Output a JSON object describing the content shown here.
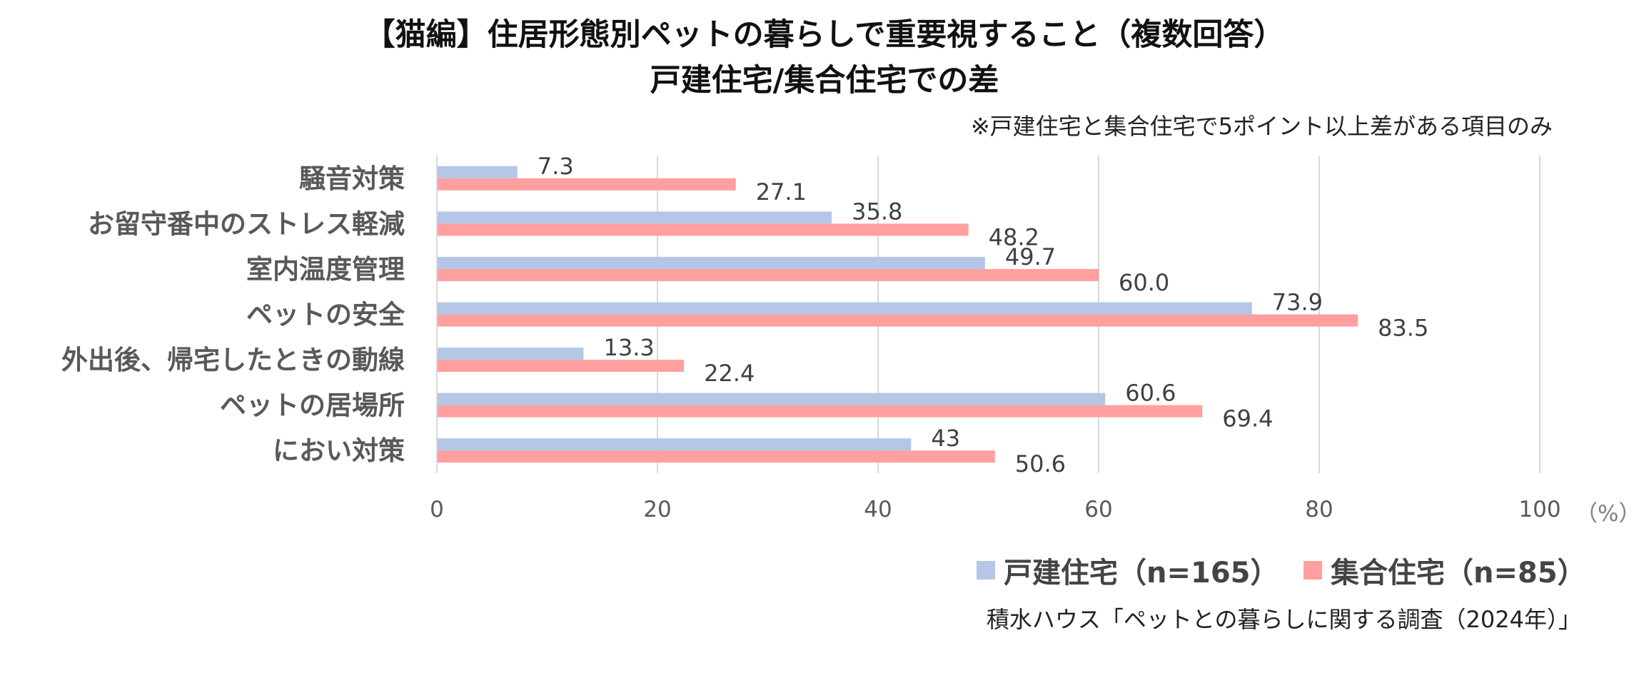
{
  "title_line1": "【猫編】住居形態別ペットの暮らしで重要視すること（複数回答）",
  "title_line2": "戸建住宅/集合住宅での差",
  "note": "※戸建住宅と集合住宅で5ポイント以上差がある項目のみ",
  "source": "積水ハウス「ペットとの暮らしに関する調査（2024年）」",
  "colors": {
    "series_a": "#b4c7e7",
    "series_b": "#ff9f9f",
    "grid": "#d9d9d9",
    "label": "#595959"
  },
  "chart_data": {
    "type": "bar",
    "orientation": "horizontal",
    "categories": [
      "騒音対策",
      "お留守番中のストレス軽減",
      "室内温度管理",
      "ペットの安全",
      "外出後、帰宅したときの動線",
      "ペットの居場所",
      "におい対策"
    ],
    "series": [
      {
        "name": "戸建住宅（n=165）",
        "values": [
          7.3,
          35.8,
          49.7,
          73.9,
          13.3,
          60.6,
          43
        ],
        "labels": [
          "7.3",
          "35.8",
          "49.7",
          "73.9",
          "13.3",
          "60.6",
          "43"
        ]
      },
      {
        "name": "集合住宅（n=85）",
        "values": [
          27.1,
          48.2,
          60.0,
          83.5,
          22.4,
          69.4,
          50.6
        ],
        "labels": [
          "27.1",
          "48.2",
          "60.0",
          "83.5",
          "22.4",
          "69.4",
          "50.6"
        ]
      }
    ],
    "xlim": [
      0,
      100
    ],
    "xticks": [
      "0",
      "20",
      "40",
      "60",
      "80",
      "100"
    ],
    "xunit": "（%）",
    "grid": true,
    "legend_position": "bottom-right"
  }
}
